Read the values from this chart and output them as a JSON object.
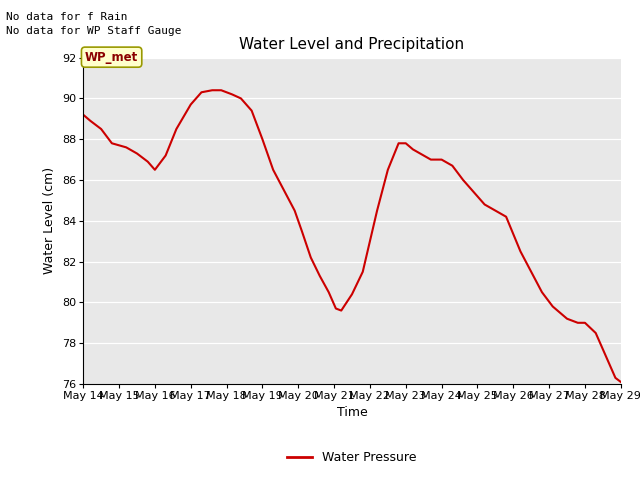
{
  "title": "Water Level and Precipitation",
  "xlabel": "Time",
  "ylabel": "Water Level (cm)",
  "legend_label": "Water Pressure",
  "line_color": "#cc0000",
  "background_color": "#e8e8e8",
  "ylim": [
    76,
    92
  ],
  "yticks": [
    76,
    78,
    80,
    82,
    84,
    86,
    88,
    90,
    92
  ],
  "annotation_text1": "No data for f Rain",
  "annotation_text2": "No data for WP Staff Gauge",
  "wp_met_label": "WP_met",
  "x_days": [
    14,
    15,
    16,
    17,
    18,
    19,
    20,
    21,
    22,
    23,
    24,
    25,
    26,
    27,
    28,
    29
  ],
  "x_labels": [
    "May 14",
    "May 15",
    "May 16",
    "May 17",
    "May 18",
    "May 19",
    "May 20",
    "May 21",
    "May 22",
    "May 23",
    "May 24",
    "May 25",
    "May 26",
    "May 27",
    "May 28",
    "May 29"
  ],
  "data_x": [
    14.0,
    14.2,
    14.5,
    14.8,
    15.0,
    15.2,
    15.5,
    15.8,
    16.0,
    16.3,
    16.6,
    17.0,
    17.3,
    17.6,
    17.85,
    18.0,
    18.15,
    18.4,
    18.7,
    19.0,
    19.3,
    19.6,
    19.9,
    20.1,
    20.35,
    20.6,
    20.85,
    21.05,
    21.2,
    21.5,
    21.8,
    22.2,
    22.5,
    22.8,
    23.0,
    23.2,
    23.5,
    23.7,
    24.0,
    24.3,
    24.6,
    24.9,
    25.2,
    25.5,
    25.8,
    26.2,
    26.5,
    26.8,
    27.1,
    27.5,
    27.8,
    28.0,
    28.3,
    28.6,
    28.85,
    29.0
  ],
  "data_y": [
    89.2,
    88.9,
    88.5,
    87.8,
    87.7,
    87.6,
    87.3,
    86.9,
    86.5,
    87.2,
    88.5,
    89.7,
    90.3,
    90.4,
    90.4,
    90.3,
    90.2,
    90.0,
    89.4,
    88.0,
    86.5,
    85.5,
    84.5,
    83.5,
    82.2,
    81.3,
    80.5,
    79.7,
    79.6,
    80.4,
    81.5,
    84.5,
    86.5,
    87.8,
    87.8,
    87.5,
    87.2,
    87.0,
    87.0,
    86.7,
    86.0,
    85.4,
    84.8,
    84.5,
    84.2,
    82.5,
    81.5,
    80.5,
    79.8,
    79.2,
    79.0,
    79.0,
    78.5,
    77.3,
    76.3,
    76.1
  ]
}
